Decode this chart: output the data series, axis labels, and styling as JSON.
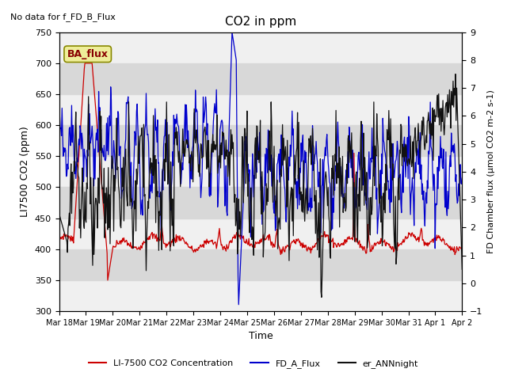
{
  "title": "CO2 in ppm",
  "xlabel": "Time",
  "ylabel_left": "LI7500 CO2 (ppm)",
  "ylabel_right": "FD Chamber flux (μmol CO2 m-2 s-1)",
  "top_left_text": "No data for f_FD_B_Flux",
  "legend_box_label": "BA_flux",
  "legend_box_color": "#eeee99",
  "legend_box_edge_color": "#888800",
  "legend_box_text_color": "#880000",
  "ylim_left": [
    300,
    750
  ],
  "ylim_right": [
    -1.0,
    9.0
  ],
  "yticks_left": [
    300,
    350,
    400,
    450,
    500,
    550,
    600,
    650,
    700,
    750
  ],
  "yticks_right": [
    -1.0,
    0.0,
    1.0,
    2.0,
    3.0,
    4.0,
    5.0,
    6.0,
    7.0,
    8.0,
    9.0
  ],
  "xtick_labels": [
    "Mar 18",
    "Mar 19",
    "Mar 20",
    "Mar 21",
    "Mar 22",
    "Mar 23",
    "Mar 24",
    "Mar 25",
    "Mar 26",
    "Mar 27",
    "Mar 28",
    "Mar 29",
    "Mar 30",
    "Mar 31",
    "Apr 1",
    "Apr 2"
  ],
  "gray_band_color": "#d8d8d8",
  "gray_band_ranges": [
    [
      350,
      400
    ],
    [
      450,
      500
    ],
    [
      550,
      600
    ],
    [
      650,
      700
    ]
  ],
  "line_red_label": "LI-7500 CO2 Concentration",
  "line_blue_label": "FD_A_Flux",
  "line_black_label": "er_ANNnight",
  "line_red_color": "#cc0000",
  "line_blue_color": "#0000cc",
  "line_black_color": "#111111",
  "background_color": "#f0f0f0",
  "plot_bg_color": "#f0f0f0",
  "n_points": 672,
  "seed": 7
}
